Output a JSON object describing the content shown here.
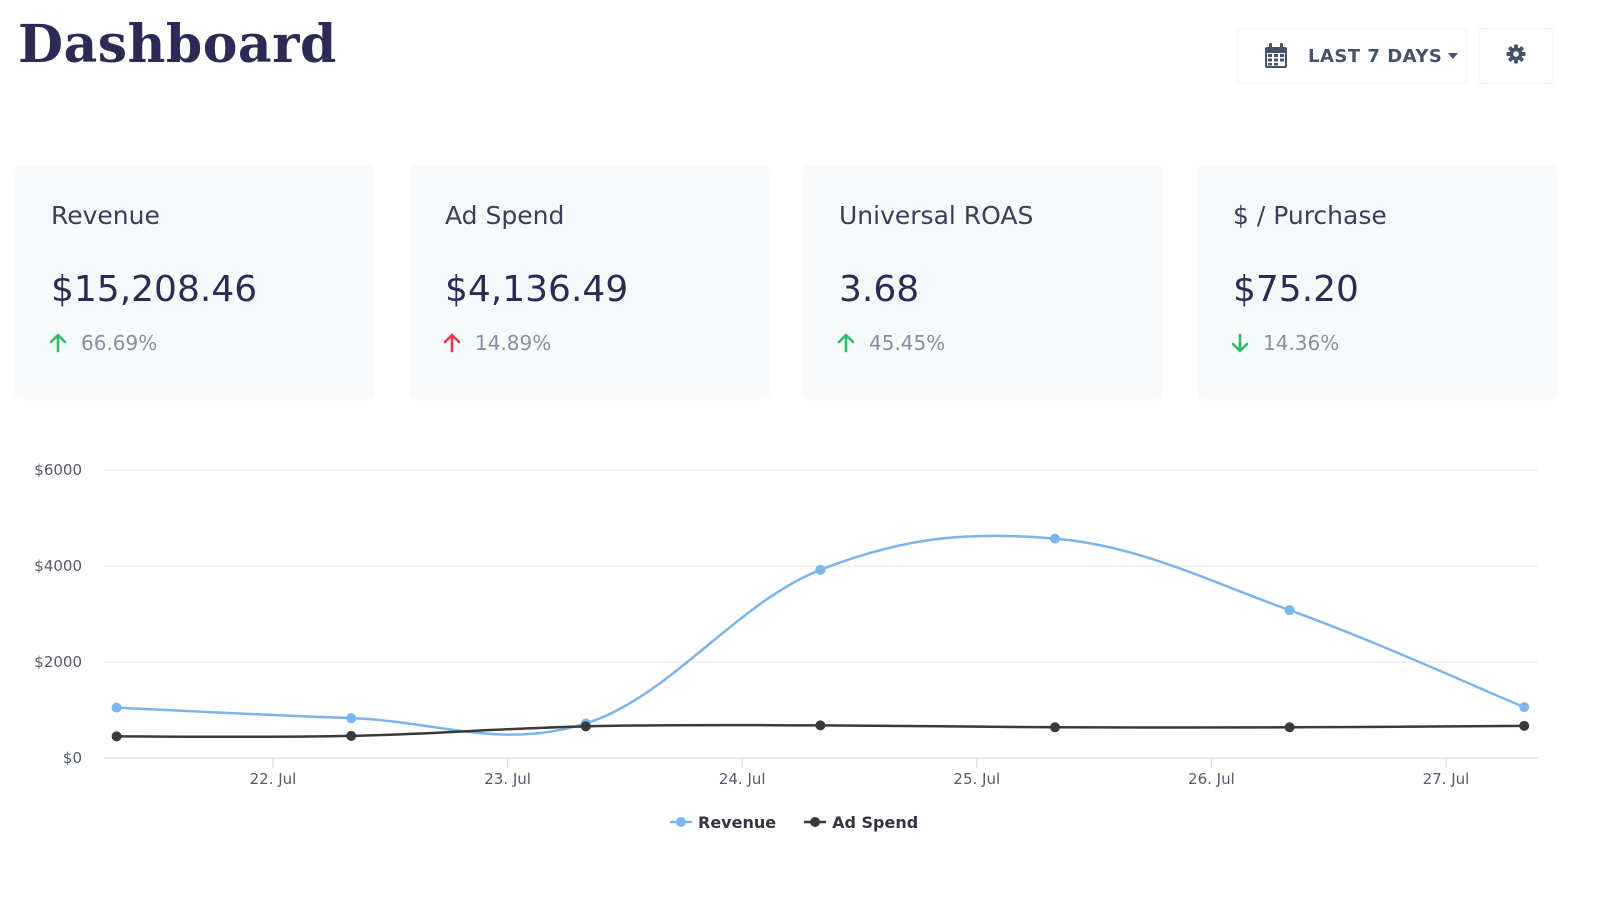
{
  "header": {
    "title": "Dashboard",
    "date_range_label": "LAST 7 DAYS",
    "date_icon": "calendar-icon",
    "settings_icon": "gear-icon"
  },
  "colors": {
    "title": "#2d2b55",
    "up_green": "#2ebd6b",
    "up_red": "#e8364e",
    "down_green": "#2ebd6b",
    "revenue_series": "#7cb4ec",
    "adspend_series": "#3a3a3a"
  },
  "cards": [
    {
      "label": "Revenue",
      "value": "$15,208.46",
      "change": "66.69%",
      "direction": "up",
      "arrow_color": "#2ebd6b"
    },
    {
      "label": "Ad Spend",
      "value": "$4,136.49",
      "change": "14.89%",
      "direction": "up",
      "arrow_color": "#e8364e"
    },
    {
      "label": "Universal ROAS",
      "value": "3.68",
      "change": "45.45%",
      "direction": "up",
      "arrow_color": "#2ebd6b"
    },
    {
      "label": "$ / Purchase",
      "value": "$75.20",
      "change": "14.36%",
      "direction": "down",
      "arrow_color": "#2ebd6b"
    }
  ],
  "chart_data": {
    "type": "line",
    "categories": [
      "22. Jul",
      "23. Jul",
      "24. Jul",
      "25. Jul",
      "26. Jul",
      "27. Jul"
    ],
    "y_ticks": [
      "$0",
      "$2000",
      "$4000",
      "$6000"
    ],
    "ylim": [
      0,
      6000
    ],
    "grid": true,
    "legend": "bottom-center",
    "series": [
      {
        "name": "Revenue",
        "color": "#7cb4ec",
        "points": [
          {
            "x": "2024-07-21 08:00",
            "y": 1050
          },
          {
            "x": "2024-07-22 08:00",
            "y": 830
          },
          {
            "x": "2024-07-23 08:00",
            "y": 720
          },
          {
            "x": "2024-07-24 08:00",
            "y": 3920
          },
          {
            "x": "2024-07-25 08:00",
            "y": 4570
          },
          {
            "x": "2024-07-26 08:00",
            "y": 3080
          },
          {
            "x": "2024-07-27 08:00",
            "y": 1060
          }
        ]
      },
      {
        "name": "Ad Spend",
        "color": "#3a3a3a",
        "points": [
          {
            "x": "2024-07-21 08:00",
            "y": 450
          },
          {
            "x": "2024-07-22 08:00",
            "y": 460
          },
          {
            "x": "2024-07-23 08:00",
            "y": 660
          },
          {
            "x": "2024-07-24 08:00",
            "y": 680
          },
          {
            "x": "2024-07-25 08:00",
            "y": 640
          },
          {
            "x": "2024-07-26 08:00",
            "y": 640
          },
          {
            "x": "2024-07-27 08:00",
            "y": 670
          }
        ]
      }
    ]
  }
}
